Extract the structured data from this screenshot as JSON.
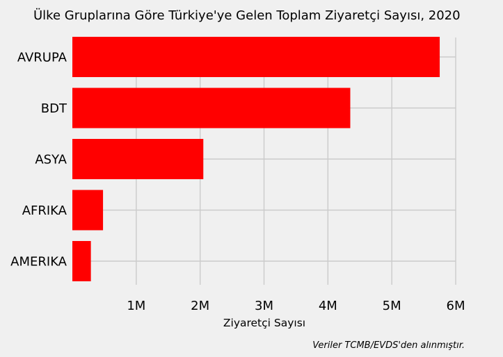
{
  "chart_data": {
    "type": "bar",
    "orientation": "horizontal",
    "title": "Ülke Gruplarına Göre Türkiye'ye Gelen Toplam Ziyaretçi Sayısı, 2020",
    "categories": [
      "AVRUPA",
      "BDT",
      "ASYA",
      "AFRIKA",
      "AMERIKA"
    ],
    "values": [
      5750000,
      4350000,
      2050000,
      480000,
      290000
    ],
    "xlabel": "Ziyaretçi Sayısı",
    "ylabel": "",
    "xlim": [
      0,
      6000000
    ],
    "xticks": [
      1000000,
      2000000,
      3000000,
      4000000,
      5000000,
      6000000
    ],
    "xtick_labels": [
      "1M",
      "2M",
      "3M",
      "4M",
      "5M",
      "6M"
    ],
    "bar_color": "#ff0000",
    "background_color": "#f0f0f0",
    "grid": true,
    "legend": false
  },
  "footer": {
    "source": "Veriler TCMB/EVDS'den alınmıştır."
  }
}
